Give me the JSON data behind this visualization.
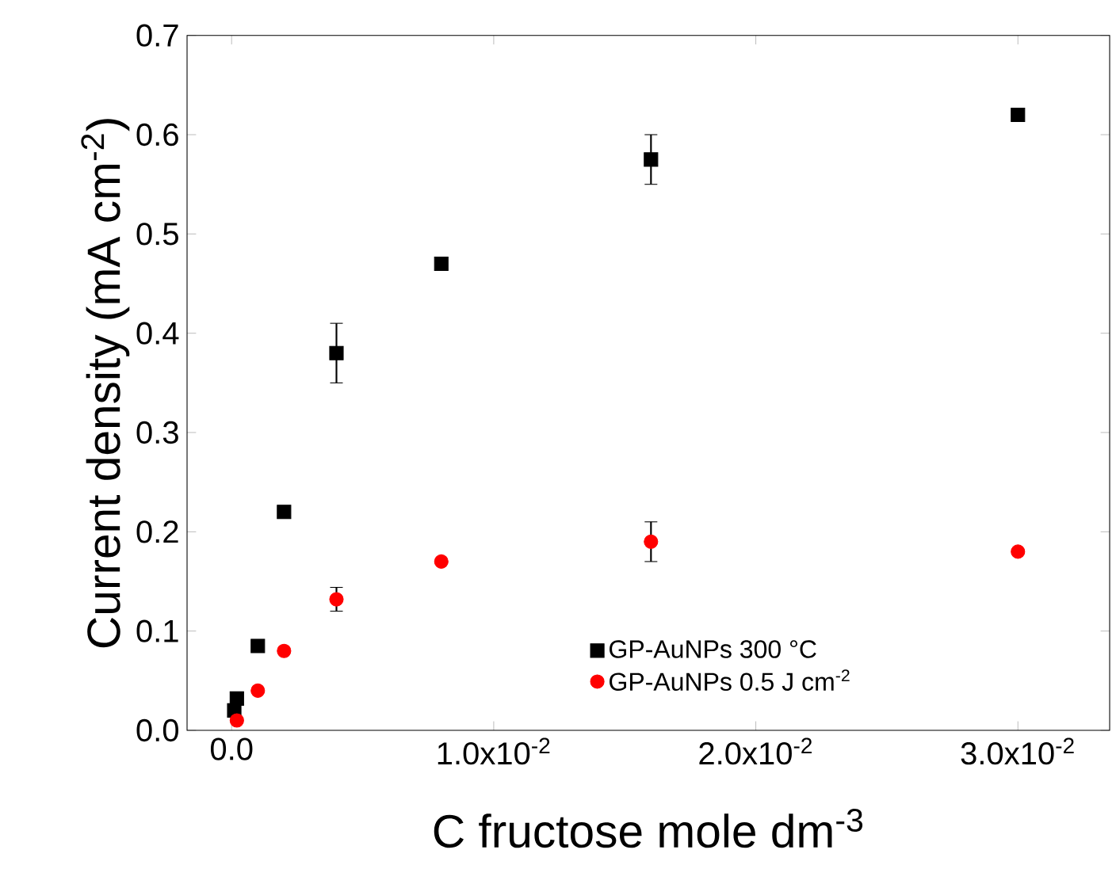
{
  "chart_data": {
    "type": "scatter",
    "xlabel": "C fructose mole dm$^{-3}$",
    "ylabel": "Current density (mA cm$^{-2}$)",
    "xlim": [
      -0.0017,
      0.0335
    ],
    "ylim": [
      0,
      0.7
    ],
    "xticks": [
      {
        "value": 0,
        "label": "0.0"
      },
      {
        "value": 0.01,
        "label": "1.0x10$^{-2}$"
      },
      {
        "value": 0.02,
        "label": "2.0x10$^{-2}$"
      },
      {
        "value": 0.03,
        "label": "3.0x10$^{-2}$"
      }
    ],
    "yticks": [
      {
        "value": 0,
        "label": "0.0"
      },
      {
        "value": 0.1,
        "label": "0.1"
      },
      {
        "value": 0.2,
        "label": "0.2"
      },
      {
        "value": 0.3,
        "label": "0.3"
      },
      {
        "value": 0.4,
        "label": "0.4"
      },
      {
        "value": 0.5,
        "label": "0.5"
      },
      {
        "value": 0.6,
        "label": "0.6"
      },
      {
        "value": 0.7,
        "label": "0.7"
      }
    ],
    "legend": "bottom right",
    "grid": false,
    "series": [
      {
        "name": "GP-AuNPs 300 °C",
        "color": "#000000",
        "marker": "square",
        "x": [
          0.0001,
          0.0002,
          0.001,
          0.002,
          0.004,
          0.008,
          0.016,
          0.03
        ],
        "values": [
          0.02,
          0.032,
          0.085,
          0.22,
          0.38,
          0.47,
          0.575,
          0.62
        ],
        "errors": [
          null,
          null,
          null,
          null,
          0.03,
          null,
          0.025,
          null
        ]
      },
      {
        "name": "GP-AuNPs 0.5 J cm$^{-2}$",
        "color": "#ff0000",
        "marker": "circle",
        "x": [
          0.0002,
          0.001,
          0.002,
          0.004,
          0.008,
          0.016,
          0.03
        ],
        "values": [
          0.01,
          0.04,
          0.08,
          0.132,
          0.17,
          0.19,
          0.18
        ],
        "errors": [
          null,
          null,
          null,
          0.012,
          null,
          0.02,
          null
        ]
      }
    ]
  }
}
